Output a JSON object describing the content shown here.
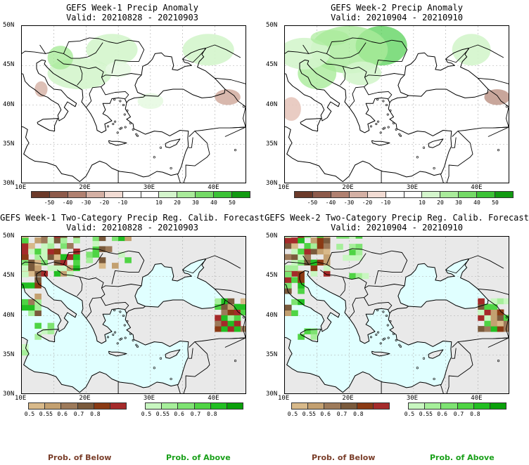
{
  "panels": [
    {
      "title": "GEFS Week-1 Precip Anomaly",
      "valid": "Valid: 20210828 - 20210903",
      "kind": "anomaly"
    },
    {
      "title": "GEFS Week-2 Precip Anomaly",
      "valid": "Valid: 20210904 - 20210910",
      "kind": "anomaly"
    },
    {
      "title": "GEFS Week-1 Two-Category Precip Reg. Calib. Forecast",
      "valid": "Valid: 20210828 - 20210903",
      "kind": "prob"
    },
    {
      "title": "GEFS Week-2 Two-Category Precip Reg. Calib. Forecast",
      "valid": "Valid: 20210904 - 20210910",
      "kind": "prob"
    }
  ],
  "axes": {
    "lat_labels": [
      "50N",
      "45N",
      "40N",
      "35N",
      "30N"
    ],
    "lon_labels": [
      "10E",
      "20E",
      "30E",
      "40E"
    ]
  },
  "anomaly_bar": {
    "ticks": [
      "-50",
      "-40",
      "-30",
      "-20",
      "-10",
      "10",
      "20",
      "30",
      "40",
      "50"
    ],
    "colors": [
      "#6b3a2a",
      "#8d5a4a",
      "#b08070",
      "#d4b0a4",
      "#f2dcd4",
      "#ffffff",
      "#ffffff",
      "#d4f5cc",
      "#a9eb9a",
      "#74d966",
      "#3cc236",
      "#129a12"
    ]
  },
  "prob_below_bar": {
    "ticks": [
      "0.5",
      "0.55",
      "0.6",
      "0.7",
      "0.8"
    ],
    "colors": [
      "#d8b98a",
      "#c3a070",
      "#9d7a5a",
      "#7a5a3c",
      "#8a3a14",
      "#a52a2a"
    ]
  },
  "prob_above_bar": {
    "ticks": [
      "0.5",
      "0.55",
      "0.6",
      "0.7",
      "0.8"
    ],
    "colors": [
      "#c8f7c0",
      "#a6ef9a",
      "#7ee372",
      "#4fd444",
      "#22bf22",
      "#0aa00a"
    ]
  },
  "legend": {
    "below_label": "Prob. of Below",
    "above_label": "Prob. of Above",
    "below_color": "#7a3e2a",
    "above_color": "#1aa01a"
  },
  "colors": {
    "sea_fill": "#e0ffff",
    "land_fill": "#e9e9e9",
    "coast": "#000000"
  }
}
